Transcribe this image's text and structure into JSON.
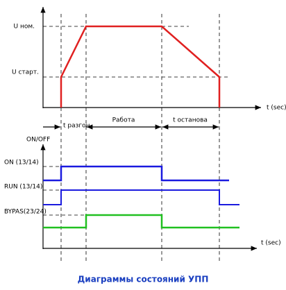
{
  "top_axis": {
    "u_nom": "U ном.",
    "u_start": "U старт.",
    "x_label": "t (sec)"
  },
  "phases": {
    "accel": "t разгон",
    "work": "Работа",
    "stop": "t останова"
  },
  "bottom_axis": {
    "y_label": "ON/OFF",
    "x_label": "t (sec)"
  },
  "signals": [
    "ON (13/14)",
    "RUN (13/14)",
    "BYPAS(23/24)"
  ],
  "caption": "Диаграммы состояний УПП"
}
